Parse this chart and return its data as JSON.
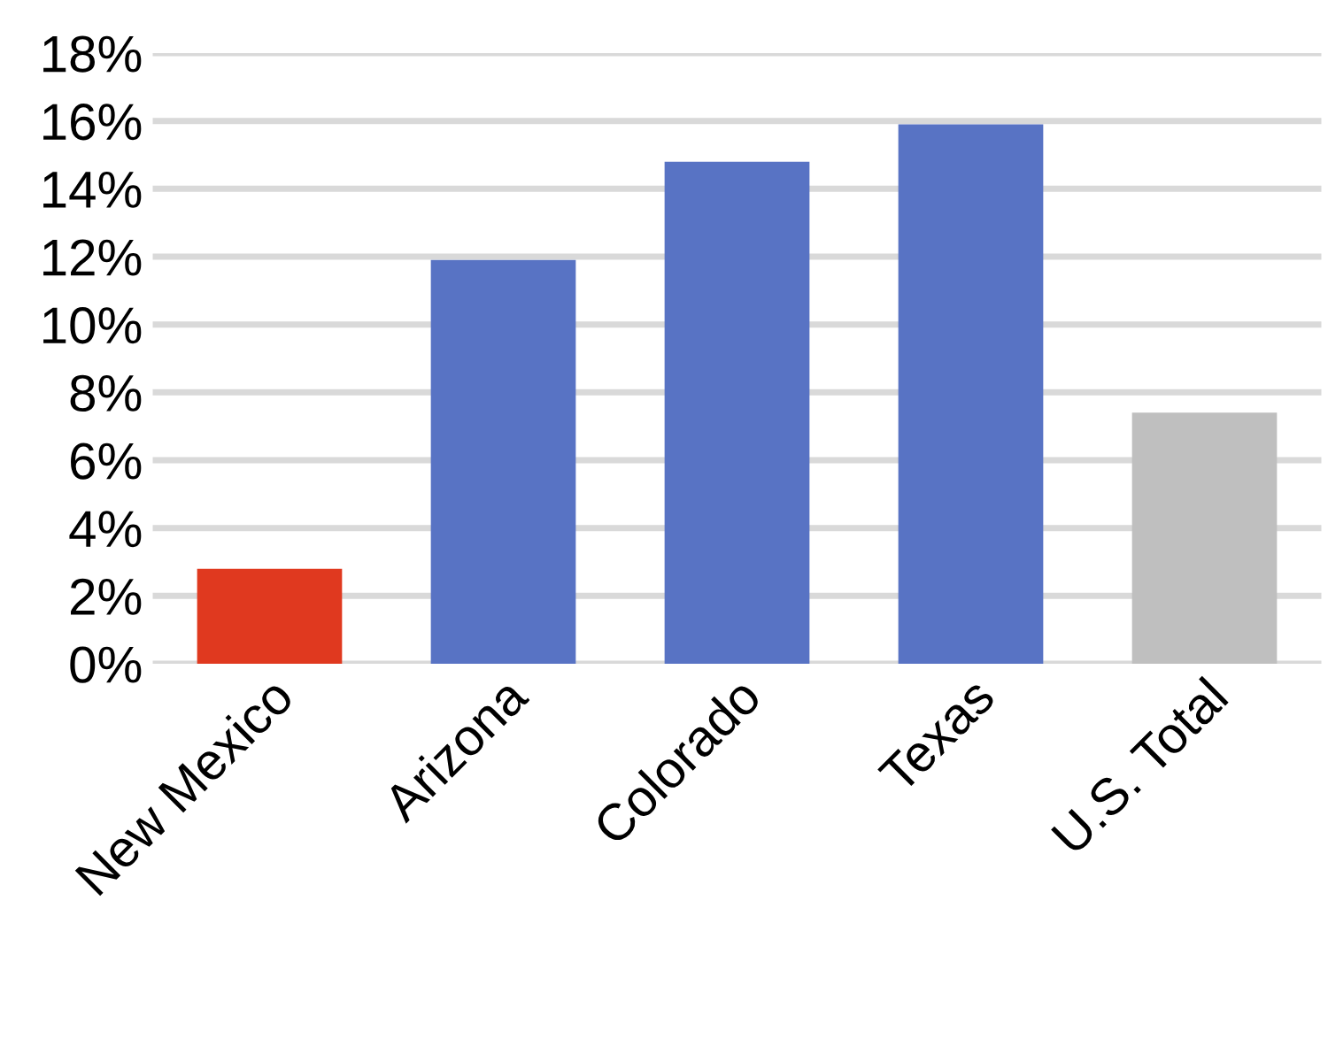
{
  "chart_data": {
    "type": "bar",
    "categories": [
      "New Mexico",
      "Arizona",
      "Colorado",
      "Texas",
      "U.S. Total"
    ],
    "values": [
      2.8,
      11.9,
      14.8,
      15.9,
      7.4
    ],
    "colors": [
      "#e0391f",
      "#5873c4",
      "#5873c4",
      "#5873c4",
      "#bfbfbf"
    ],
    "ylim": [
      0,
      18
    ],
    "yticks": [
      {
        "value": 0,
        "label": "0%"
      },
      {
        "value": 2,
        "label": "2%"
      },
      {
        "value": 4,
        "label": "4%"
      },
      {
        "value": 6,
        "label": "6%"
      },
      {
        "value": 8,
        "label": "8%"
      },
      {
        "value": 10,
        "label": "10%"
      },
      {
        "value": 12,
        "label": "12%"
      },
      {
        "value": 14,
        "label": "14%"
      },
      {
        "value": 16,
        "label": "16%"
      },
      {
        "value": 18,
        "label": "18%"
      }
    ],
    "grid": "y"
  }
}
